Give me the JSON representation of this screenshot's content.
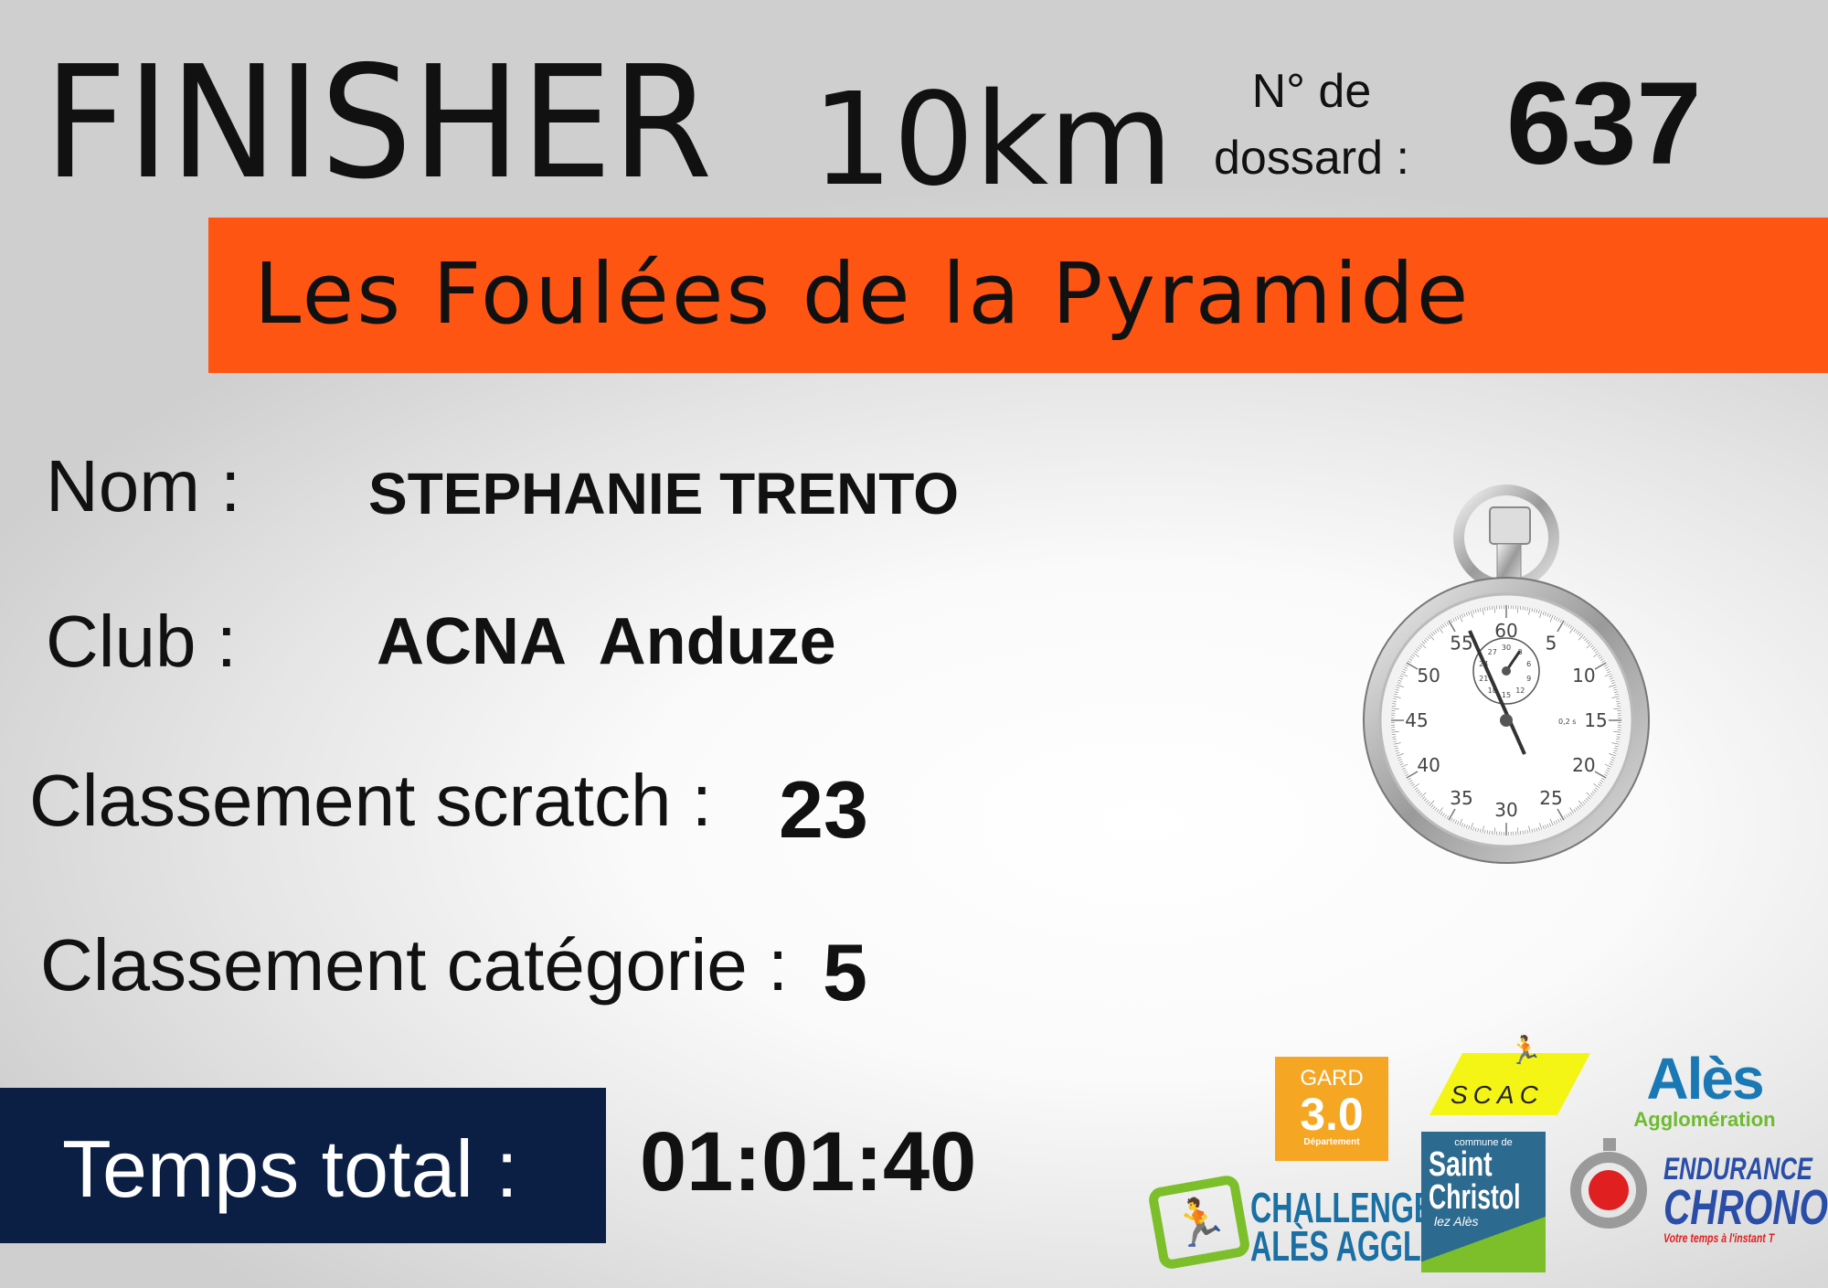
{
  "header": {
    "title": "FINISHER",
    "distance": "10km",
    "bib_label_line1": "N° de",
    "bib_label_line2": "dossard :",
    "bib_number": "637"
  },
  "event": {
    "name": "Les Foulées de la Pyramide",
    "banner_color": "#ff5512"
  },
  "runner": {
    "name_label": "Nom :",
    "name": "STEPHANIE TRENTO",
    "club_label": "Club :",
    "club": "ACNA  Anduze",
    "scratch_label": "Classement scratch :",
    "scratch": "23",
    "category_label": "Classement catégorie :",
    "category": "5"
  },
  "time": {
    "label": "Temps total :",
    "value": "01:01:40",
    "box_color": "#0b1f45"
  },
  "stopwatch": {
    "dial_labels": [
      "60",
      "5",
      "10",
      "15",
      "20",
      "25",
      "30",
      "35",
      "40",
      "45",
      "50",
      "55"
    ],
    "sub_dial_labels": [
      "30",
      "3",
      "6",
      "9",
      "12",
      "15",
      "18",
      "21",
      "24",
      "27"
    ],
    "unit_label": "0,2 s"
  },
  "logos": {
    "gard": {
      "line1": "GARD",
      "line2": "3.0",
      "line3": "Département"
    },
    "scac": {
      "text": "SCAC"
    },
    "ales": {
      "line1": "Alès",
      "line2": "Agglomération"
    },
    "challenge": {
      "line1": "CHALLENGE",
      "line2": "ALÈS AGGLO"
    },
    "saint_christol": {
      "line1": "commune de",
      "line2": "Saint",
      "line3": "Christol",
      "line4": "lez Alès"
    },
    "endurance": {
      "line1": "ENDURANCE",
      "line2": "CHRONO",
      "line3": "Votre temps à l'instant T"
    }
  }
}
